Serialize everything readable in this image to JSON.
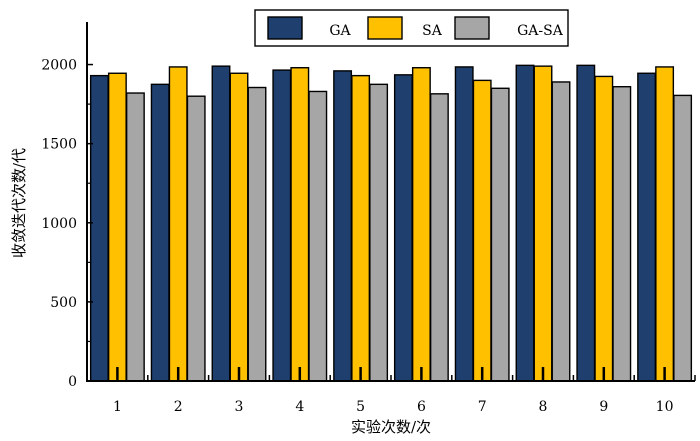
{
  "chart_data": {
    "type": "bar",
    "xlabel": "实验次数/次",
    "ylabel": "收敛迭代次数/代",
    "categories": [
      "1",
      "2",
      "3",
      "4",
      "5",
      "6",
      "7",
      "8",
      "9",
      "10"
    ],
    "ylim": [
      0,
      2250
    ],
    "yticks": [
      "0",
      "500",
      "1000",
      "1500",
      "2000"
    ],
    "grid": false,
    "legend_position": "top-center",
    "series": [
      {
        "name": "GA",
        "color": "#1f3f6e",
        "values": [
          1930,
          1875,
          1990,
          1965,
          1960,
          1935,
          1985,
          1995,
          1995,
          1945
        ]
      },
      {
        "name": "SA",
        "color": "#ffc000",
        "values": [
          1945,
          1985,
          1945,
          1980,
          1930,
          1980,
          1900,
          1990,
          1925,
          1985
        ]
      },
      {
        "name": "GA-SA",
        "color": "#a6a6a6",
        "values": [
          1820,
          1800,
          1855,
          1830,
          1875,
          1815,
          1850,
          1890,
          1860,
          1805
        ]
      }
    ]
  }
}
